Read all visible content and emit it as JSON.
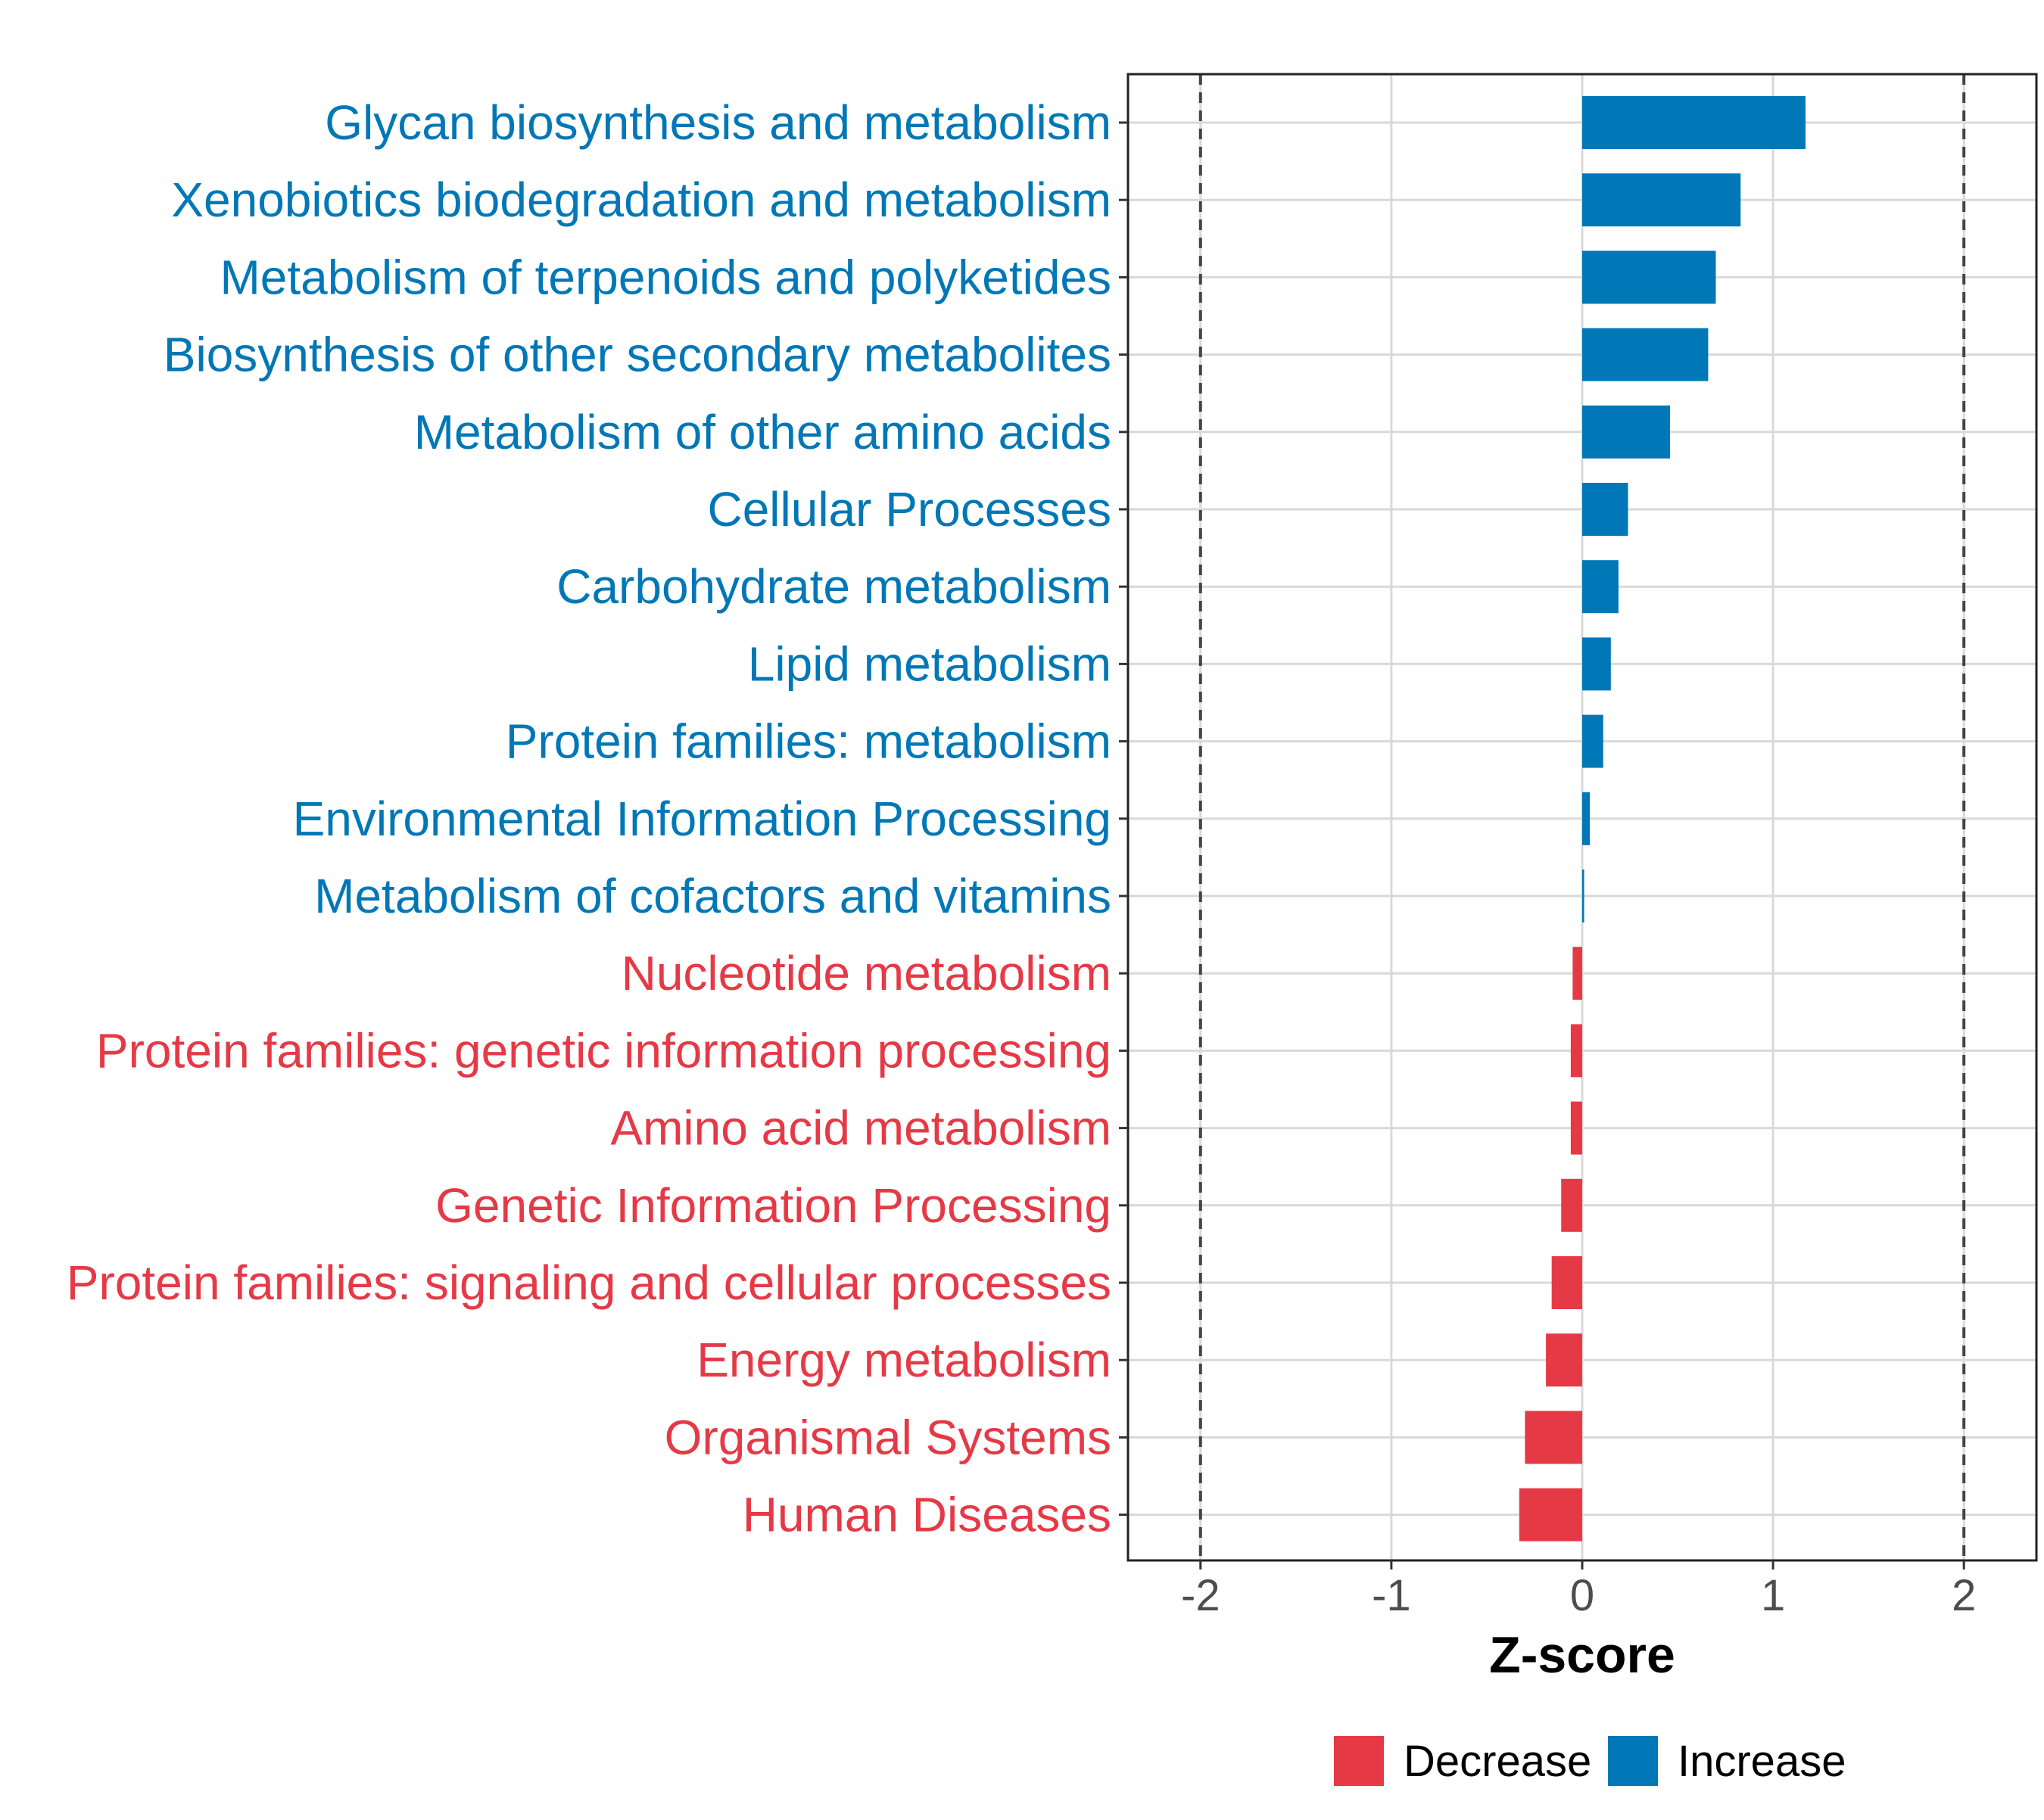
{
  "chart_data": {
    "type": "bar",
    "orientation": "horizontal",
    "title": "",
    "xlabel": "Z-score",
    "ylabel": "",
    "xlim": [
      -2.38,
      2.38
    ],
    "xticks": [
      -2,
      -1,
      0,
      1,
      2
    ],
    "xtick_labels": [
      "-2",
      "-1",
      "0",
      "1",
      "2"
    ],
    "reference_lines": [
      -2,
      2
    ],
    "grid": true,
    "categories": [
      "Glycan biosynthesis and metabolism",
      "Xenobiotics biodegradation and metabolism",
      "Metabolism of terpenoids and polyketides",
      "Biosynthesis of other secondary metabolites",
      "Metabolism of other amino acids",
      "Cellular Processes",
      "Carbohydrate metabolism",
      "Lipid metabolism",
      "Protein families: metabolism",
      "Environmental Information Processing",
      "Metabolism of cofactors and vitamins",
      "Nucleotide metabolism",
      "Protein families: genetic information processing",
      "Amino acid metabolism",
      "Genetic Information Processing",
      "Protein families: signaling and cellular processes",
      "Energy metabolism",
      "Organismal Systems",
      "Human Diseases"
    ],
    "values": [
      1.17,
      0.83,
      0.7,
      0.66,
      0.46,
      0.24,
      0.19,
      0.15,
      0.11,
      0.04,
      0.01,
      -0.05,
      -0.06,
      -0.06,
      -0.11,
      -0.16,
      -0.19,
      -0.3,
      -0.33
    ],
    "groups": [
      "Increase",
      "Increase",
      "Increase",
      "Increase",
      "Increase",
      "Increase",
      "Increase",
      "Increase",
      "Increase",
      "Increase",
      "Increase",
      "Decrease",
      "Decrease",
      "Decrease",
      "Decrease",
      "Decrease",
      "Decrease",
      "Decrease",
      "Decrease"
    ],
    "legend": {
      "position": "bottom",
      "entries": [
        {
          "label": "Decrease",
          "color": "#E63946"
        },
        {
          "label": "Increase",
          "color": "#0077B6"
        }
      ]
    },
    "colors": {
      "Decrease": "#E63946",
      "Increase": "#0077B6",
      "grid": "#D9D9D9",
      "reference_line": "#444444",
      "axis_text": "#4D4D4D"
    }
  }
}
